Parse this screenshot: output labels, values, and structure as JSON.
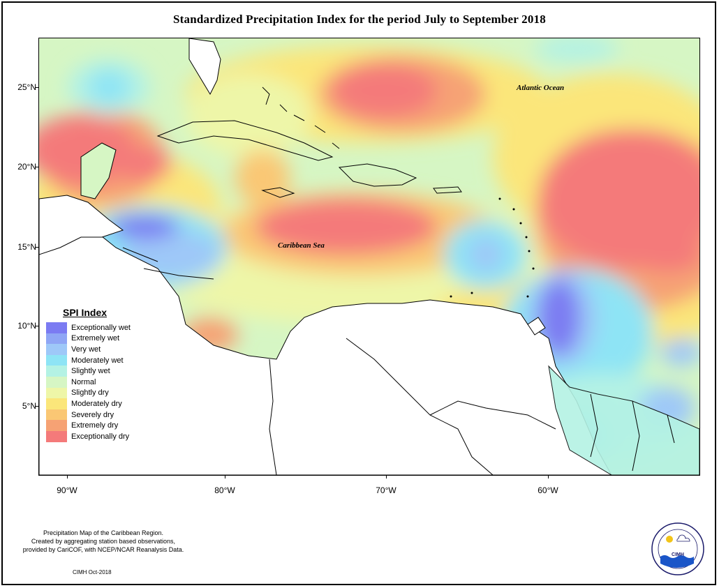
{
  "title": "Standardized Precipitation Index for the period July to September 2018",
  "map": {
    "lat_labels": [
      "25°N",
      "20°N",
      "15°N",
      "10°N",
      "5°N"
    ],
    "lon_labels": [
      "90°W",
      "80°W",
      "70°W",
      "60°W"
    ],
    "ocean_labels": [
      "Atlantic Ocean",
      "Caribbean Sea"
    ]
  },
  "legend": {
    "title": "SPI Index",
    "items": [
      {
        "label": "Exceptionally wet",
        "color": "#7b7bf2"
      },
      {
        "label": "Extremely wet",
        "color": "#8fa6f5"
      },
      {
        "label": "Very wet",
        "color": "#9ec8f8"
      },
      {
        "label": "Moderately wet",
        "color": "#8ee4f5"
      },
      {
        "label": "Slightly wet",
        "color": "#b4f2e4"
      },
      {
        "label": "Normal",
        "color": "#d6f6c4"
      },
      {
        "label": "Slightly dry",
        "color": "#eef6a8"
      },
      {
        "label": "Moderately dry",
        "color": "#fbe67a"
      },
      {
        "label": "Severely dry",
        "color": "#fac774"
      },
      {
        "label": "Extremely dry",
        "color": "#f6a274"
      },
      {
        "label": "Exceptionally dry",
        "color": "#f47a7a"
      }
    ]
  },
  "footer": {
    "line1": "Precipitation Map of the Caribbean Region.",
    "line2": "Created by aggregating station based observations,",
    "line3": "provided by CariCOF, with NCEP/NCAR Reanalysis Data.",
    "credit": "CIMH Oct-2018",
    "logo_text": "CIMH"
  }
}
